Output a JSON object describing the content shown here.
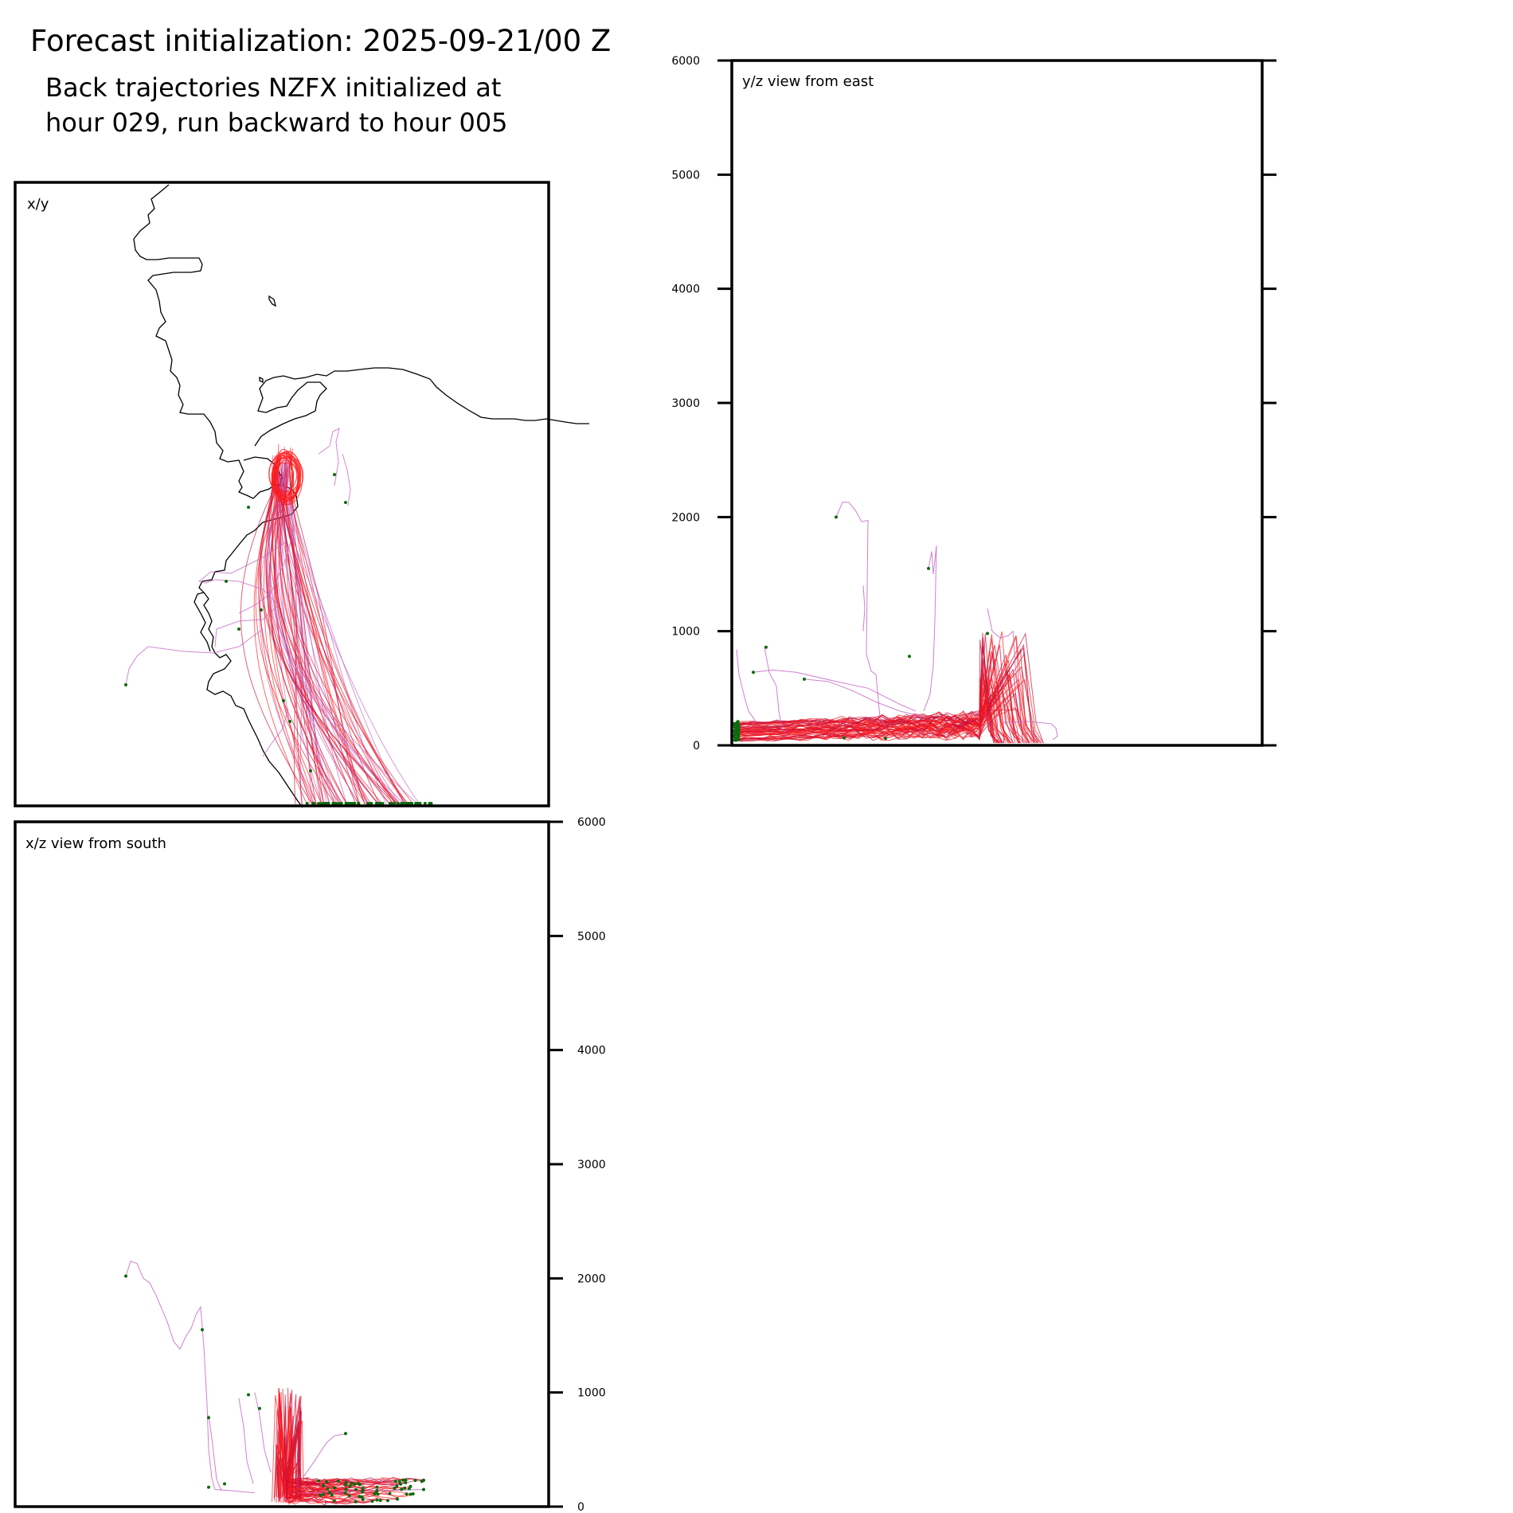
{
  "figure": {
    "title": "Forecast initialization: 2025-09-21/00 Z",
    "subtitle_line1": "Back trajectories NZFX initialized at",
    "subtitle_line2": "hour 029, run backward to hour 005"
  },
  "colors": {
    "early_trajectory": "#c262c2",
    "late_trajectory": "#ff1a1a",
    "dense_trajectory": "#c8103a",
    "endpoint": "#0d6b0d",
    "coastline": "#000000",
    "frame": "#000000"
  },
  "chart_data": [
    {
      "id": "xy",
      "type": "line",
      "title": "x/y",
      "xlabel": "",
      "ylabel": "",
      "grid": false,
      "content": "coastline map with back trajectories fanning south from the initialization point"
    },
    {
      "id": "yz",
      "type": "line",
      "title": "y/z view from east",
      "xlabel": "",
      "ylabel": "",
      "ylim": [
        0,
        6000
      ],
      "yticks": [
        0,
        1000,
        2000,
        3000,
        4000,
        5000,
        6000
      ],
      "ytick_labels": [
        "0",
        "1000",
        "2000",
        "3000",
        "4000",
        "5000",
        "6000"
      ],
      "tick_side": "left labels, ticks both sides",
      "grid": false,
      "representative_heights_m": {
        "max_purple_excursion": 2150,
        "red_spike_peak": 1000,
        "typical_boundary_layer": 150
      }
    },
    {
      "id": "xz",
      "type": "line",
      "title": "x/z view from south",
      "xlabel": "",
      "ylabel": "",
      "ylim": [
        0,
        6000
      ],
      "yticks": [
        0,
        1000,
        2000,
        3000,
        4000,
        5000,
        6000
      ],
      "ytick_labels": [
        "0",
        "1000",
        "2000",
        "3000",
        "4000",
        "5000",
        "6000"
      ],
      "tick_side": "right",
      "grid": false,
      "representative_heights_m": {
        "max_purple_excursion": 2150,
        "red_spike_peak": 1000,
        "typical_boundary_layer": 120
      }
    }
  ]
}
